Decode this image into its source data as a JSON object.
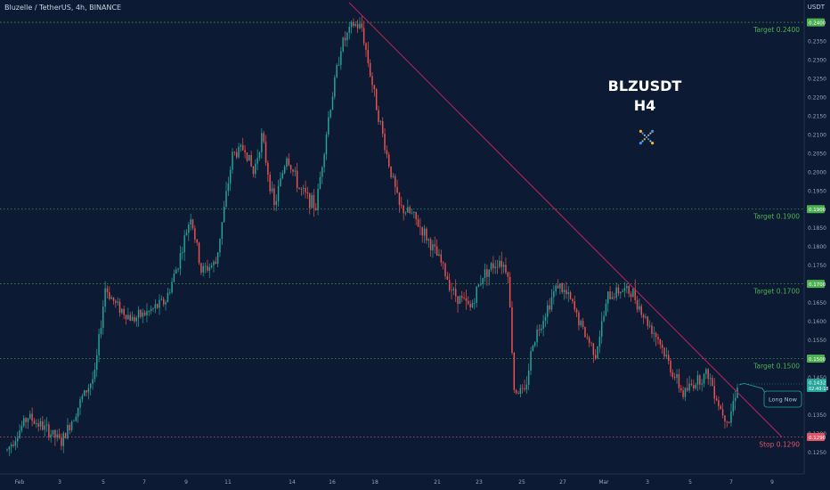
{
  "header": {
    "title": "Bluzelle / TetherUS, 4h, BINANCE",
    "currency": "USDT"
  },
  "overlay": {
    "symbol": "BLZUSDT",
    "timeframe": "H4",
    "logo_icon": "bluzelle-logo-icon"
  },
  "price_axis": {
    "labels": [
      "0.2350",
      "0.2300",
      "0.2250",
      "0.2200",
      "0.2150",
      "0.2100",
      "0.2050",
      "0.2000",
      "0.1950",
      "0.1850",
      "0.1800",
      "0.1750",
      "0.1650",
      "0.1600",
      "0.1550",
      "0.1450",
      "0.1350",
      "0.1300",
      "0.1250"
    ]
  },
  "time_axis": {
    "labels": [
      "Feb",
      "3",
      "5",
      "7",
      "9",
      "11",
      "14",
      "16",
      "18",
      "21",
      "23",
      "25",
      "27",
      "Mar",
      "3",
      "5",
      "7",
      "9"
    ]
  },
  "levels": [
    {
      "label": "Target 0.2400",
      "value": 0.24,
      "price_tag": "0.2400",
      "color": "#4caf50"
    },
    {
      "label": "Target 0.1900",
      "value": 0.19,
      "price_tag": "0.1900",
      "color": "#4caf50"
    },
    {
      "label": "Target 0.1700",
      "value": 0.17,
      "price_tag": "0.1700",
      "color": "#4caf50"
    },
    {
      "label": "Target 0.1500",
      "value": 0.15,
      "price_tag": "0.1500",
      "color": "#4caf50"
    },
    {
      "label": "Stop 0.1290",
      "value": 0.129,
      "price_tag": "0.1290",
      "color": "#e05667"
    }
  ],
  "current_price": {
    "value": 0.1432,
    "label": "0.1432",
    "countdown": "02:40:18"
  },
  "long_label": "Long Now",
  "colors": {
    "bull": "#26a69a",
    "bear": "#ef5350",
    "trendline": "#b0235a",
    "background": "#0c1a33"
  },
  "chart_data": {
    "type": "candlestick",
    "title": "Bluzelle / TetherUS, 4h, BINANCE",
    "x_axis": "time",
    "y_range": [
      0.1215,
      0.2455
    ],
    "trendline": {
      "from": {
        "x": "Feb 16",
        "y": 0.2453
      },
      "to": {
        "x": "Mar 9",
        "y": 0.129
      }
    },
    "anchors": [
      {
        "t": 0,
        "p": 0.1255
      },
      {
        "t": 10,
        "p": 0.1345
      },
      {
        "t": 20,
        "p": 0.1305
      },
      {
        "t": 26,
        "p": 0.1275
      },
      {
        "t": 36,
        "p": 0.1395
      },
      {
        "t": 42,
        "p": 0.1455
      },
      {
        "t": 47,
        "p": 0.169
      },
      {
        "t": 52,
        "p": 0.1645
      },
      {
        "t": 60,
        "p": 0.1605
      },
      {
        "t": 68,
        "p": 0.1625
      },
      {
        "t": 76,
        "p": 0.1655
      },
      {
        "t": 82,
        "p": 0.1755
      },
      {
        "t": 88,
        "p": 0.1885
      },
      {
        "t": 93,
        "p": 0.1735
      },
      {
        "t": 100,
        "p": 0.1755
      },
      {
        "t": 108,
        "p": 0.2045
      },
      {
        "t": 114,
        "p": 0.2065
      },
      {
        "t": 118,
        "p": 0.1995
      },
      {
        "t": 122,
        "p": 0.2095
      },
      {
        "t": 128,
        "p": 0.1905
      },
      {
        "t": 134,
        "p": 0.2045
      },
      {
        "t": 140,
        "p": 0.1955
      },
      {
        "t": 148,
        "p": 0.1905
      },
      {
        "t": 154,
        "p": 0.2145
      },
      {
        "t": 160,
        "p": 0.2335
      },
      {
        "t": 166,
        "p": 0.2395
      },
      {
        "t": 170,
        "p": 0.2385
      },
      {
        "t": 176,
        "p": 0.2205
      },
      {
        "t": 182,
        "p": 0.2045
      },
      {
        "t": 188,
        "p": 0.1905
      },
      {
        "t": 194,
        "p": 0.1885
      },
      {
        "t": 200,
        "p": 0.1835
      },
      {
        "t": 208,
        "p": 0.1755
      },
      {
        "t": 214,
        "p": 0.1675
      },
      {
        "t": 222,
        "p": 0.1635
      },
      {
        "t": 228,
        "p": 0.1725
      },
      {
        "t": 236,
        "p": 0.1765
      },
      {
        "t": 240,
        "p": 0.1735
      },
      {
        "t": 243,
        "p": 0.142
      },
      {
        "t": 248,
        "p": 0.1405
      },
      {
        "t": 252,
        "p": 0.1545
      },
      {
        "t": 258,
        "p": 0.1625
      },
      {
        "t": 264,
        "p": 0.17
      },
      {
        "t": 270,
        "p": 0.1655
      },
      {
        "t": 276,
        "p": 0.1575
      },
      {
        "t": 282,
        "p": 0.1515
      },
      {
        "t": 288,
        "p": 0.1665
      },
      {
        "t": 294,
        "p": 0.1685
      },
      {
        "t": 300,
        "p": 0.1675
      },
      {
        "t": 306,
        "p": 0.1605
      },
      {
        "t": 312,
        "p": 0.1555
      },
      {
        "t": 318,
        "p": 0.1475
      },
      {
        "t": 324,
        "p": 0.1405
      },
      {
        "t": 330,
        "p": 0.144
      },
      {
        "t": 336,
        "p": 0.146
      },
      {
        "t": 342,
        "p": 0.1365
      },
      {
        "t": 346,
        "p": 0.1335
      },
      {
        "t": 350,
        "p": 0.1432
      }
    ]
  }
}
